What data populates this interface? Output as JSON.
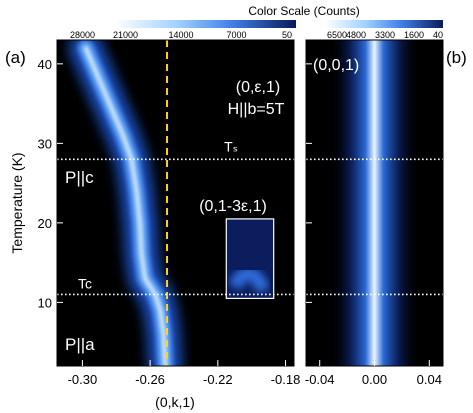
{
  "figure": {
    "colorbar_title": "Color Scale (Counts)",
    "colorbar_a_ticks": [
      "28000",
      "21000",
      "14000",
      "7000",
      "50"
    ],
    "colorbar_b_ticks": [
      "6500",
      "4800",
      "3300",
      "1600",
      "40"
    ]
  },
  "chart_data": [
    {
      "type": "heatmap",
      "panel_label": "(a)",
      "ylabel": "Temperature (K)",
      "xlabel": "(0,k,1)",
      "xlim": [
        -0.315,
        -0.175
      ],
      "ylim": [
        2,
        43
      ],
      "x_ticks": [
        {
          "value": -0.3,
          "label": "-0.30"
        },
        {
          "value": -0.26,
          "label": "-0.26"
        },
        {
          "value": -0.22,
          "label": "-0.22"
        },
        {
          "value": -0.18,
          "label": "-0.18"
        }
      ],
      "y_ticks": [
        {
          "value": 10,
          "label": "10"
        },
        {
          "value": 20,
          "label": "20"
        },
        {
          "value": 30,
          "label": "30"
        },
        {
          "value": 40,
          "label": "40"
        }
      ],
      "colormap": [
        "#000000",
        "#0c1f5e",
        "#1a4fc0",
        "#4f8ff0",
        "#bfe0ff",
        "#ffffff"
      ],
      "color_range": [
        50,
        28000
      ],
      "ridge": {
        "name": "(0,ε,1)",
        "points": [
          {
            "T": 42,
            "k": -0.298
          },
          {
            "T": 38,
            "k": -0.29
          },
          {
            "T": 34,
            "k": -0.282
          },
          {
            "T": 31,
            "k": -0.276
          },
          {
            "T": 28,
            "k": -0.271
          },
          {
            "T": 24,
            "k": -0.268
          },
          {
            "T": 20,
            "k": -0.266
          },
          {
            "T": 16,
            "k": -0.265
          },
          {
            "T": 13,
            "k": -0.263
          },
          {
            "T": 11,
            "k": -0.257
          },
          {
            "T": 9,
            "k": -0.254
          },
          {
            "T": 6,
            "k": -0.252
          },
          {
            "T": 2,
            "k": -0.251
          }
        ]
      },
      "dashed_vertical_line": {
        "k": -0.25,
        "color": "#ffd21f"
      },
      "horizontal_lines": [
        {
          "T": 28,
          "label": "Tₛ"
        },
        {
          "T": 11,
          "label": "Tc"
        }
      ],
      "annotations": [
        "(0,ε,1)",
        "H||b=5T"
      ],
      "phase_labels": [
        {
          "text": "P||c",
          "T": 25
        },
        {
          "text": "P||a",
          "T": 4
        }
      ],
      "inset": {
        "label": "(0,1-3ε,1)",
        "k_range": [
          -0.215,
          -0.187
        ],
        "T_range": [
          10.5,
          20.5
        ]
      }
    },
    {
      "type": "heatmap",
      "panel_label": "(b)",
      "xlabel": "",
      "xlim": [
        -0.05,
        0.05
      ],
      "ylim": [
        2,
        43
      ],
      "x_ticks": [
        {
          "value": -0.04,
          "label": "-0.04"
        },
        {
          "value": 0.0,
          "label": "0.00"
        },
        {
          "value": 0.04,
          "label": "0.04"
        }
      ],
      "colormap": [
        "#000000",
        "#0c1f5e",
        "#1a4fc0",
        "#4f8ff0",
        "#bfe0ff",
        "#ffffff"
      ],
      "color_range": [
        40,
        6500
      ],
      "peak": {
        "name": "(0,0,1)",
        "k": 0.0
      },
      "horizontal_lines": [
        {
          "T": 28
        },
        {
          "T": 11
        }
      ],
      "annotations": [
        "(0,0,1)"
      ]
    }
  ]
}
